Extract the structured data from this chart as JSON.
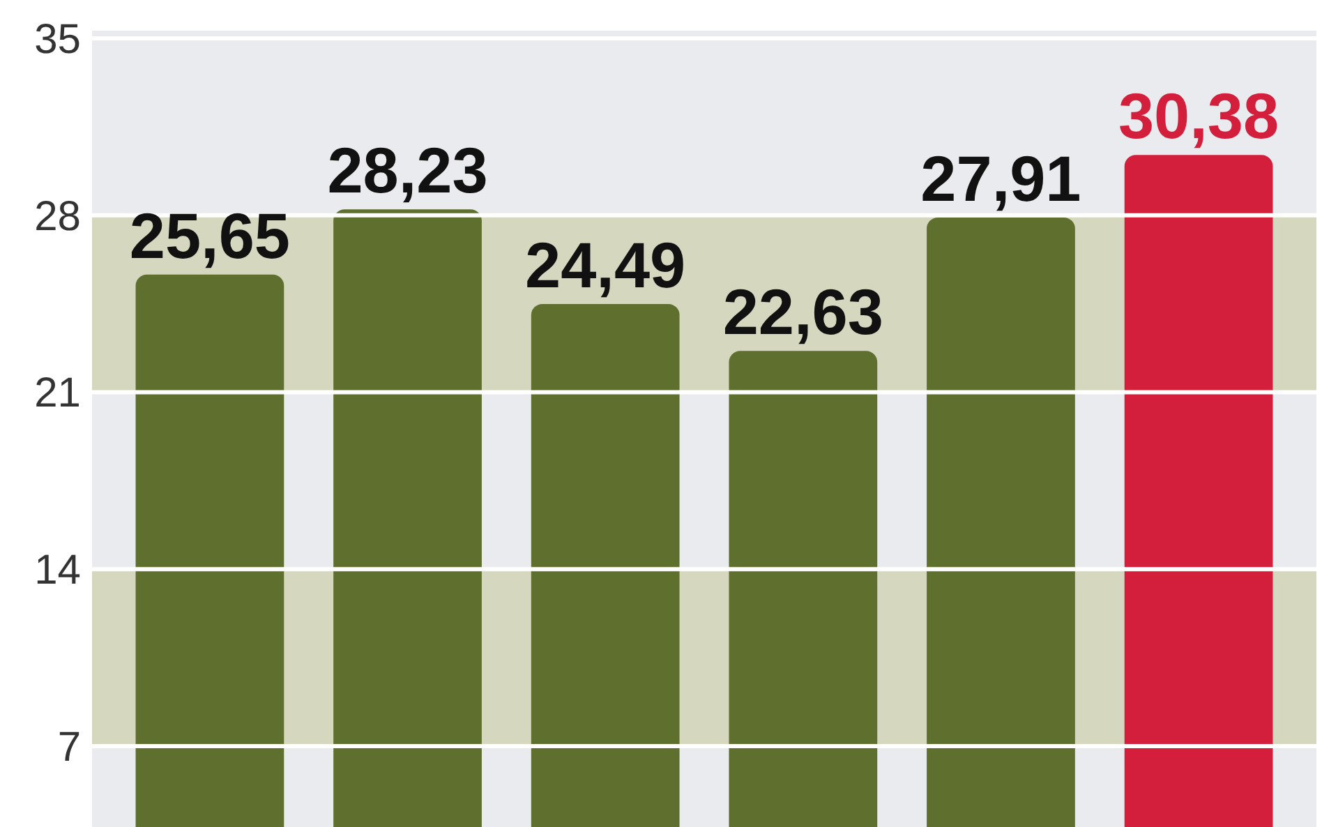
{
  "chart_data": {
    "type": "bar",
    "categories": [
      null,
      null,
      null,
      null,
      null,
      null
    ],
    "values": [
      25.65,
      28.23,
      24.49,
      22.63,
      27.91,
      30.38
    ],
    "colors": [
      "#5f6f2e",
      "#5f6f2e",
      "#5f6f2e",
      "#5f6f2e",
      "#5f6f2e",
      "#d41f3c"
    ],
    "value_labels": [
      "25,65",
      "28,23",
      "24,49",
      "22,63",
      "27,91",
      "30,38"
    ],
    "ylim": [
      3.8,
      35.3
    ],
    "yticks": [
      7,
      14,
      21,
      28,
      35
    ],
    "grid": "y",
    "bands": [
      {
        "axis": "y",
        "from": 7,
        "to": 14,
        "color": "#d5d7bf"
      },
      {
        "axis": "y",
        "from": 21,
        "to": 28,
        "color": "#d5d7bf"
      }
    ],
    "tick_labels": "y"
  }
}
